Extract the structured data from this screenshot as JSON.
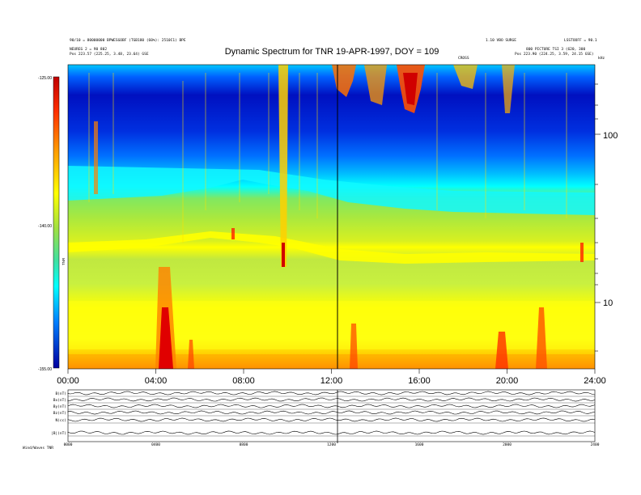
{
  "header": {
    "left_line1": "90/10 = 80000000 BPWESGOBF (TGB180 (60%): 2510C1) BPE",
    "left_line2": "NEUREG 2 = 90 802",
    "left_line3": "Pos    223.57 (225.25, 3.48, 23.64) GSE",
    "right_line1": "1.10 VBO SURGE",
    "right_line2": "800 PICTURE TSI 3 (620, 300",
    "right_line3": "Pos    223.90 (224.25, 3.59, 24.15 GSE)",
    "far_right": "LSSTOOFF = 90.1",
    "marker": "CROSS",
    "unit": "kHz"
  },
  "colorbar": {
    "label": "TNR",
    "ticks": [
      "-125.00",
      "-140.00",
      "-155.00"
    ],
    "colors": [
      "#0000a0",
      "#0044ff",
      "#00c8ff",
      "#00ffff",
      "#40e080",
      "#a0e040",
      "#ffff00",
      "#ffc800",
      "#ff8000",
      "#ff2000",
      "#c00000"
    ]
  },
  "chart_data": {
    "type": "heatmap",
    "title": "Dynamic Spectrum for TNR 19-APR-1997, DOY = 109",
    "xlabel": "",
    "ylabel": "",
    "x_ticks": [
      "00:00",
      "04:00",
      "08:00",
      "12:00",
      "16:00",
      "20:00",
      "24:00"
    ],
    "y_ticks_right": [
      "100",
      "10"
    ],
    "y_scale": "log",
    "y_unit": "kHz",
    "colorbar_range": [
      -155.0,
      -125.0
    ],
    "bands": [
      {
        "freq_range_khz": "high",
        "level": "low (blue)"
      },
      {
        "freq_range_khz": "mid",
        "level": "medium (green/cyan)"
      },
      {
        "freq_range_khz": "low",
        "level": "high (yellow/orange)"
      }
    ],
    "vertical_marker": "12:12"
  },
  "bottom_panels": {
    "labels": [
      "B(nT)",
      "Bx(nT)",
      "By(nT)",
      "Bz(nT)",
      "N(cc)",
      "|B|(nT)"
    ],
    "x_ticks": [
      "0000",
      "0400",
      "0800",
      "1200",
      "1600",
      "2000",
      "2400"
    ],
    "footer": "Wind/Waves TNR"
  }
}
